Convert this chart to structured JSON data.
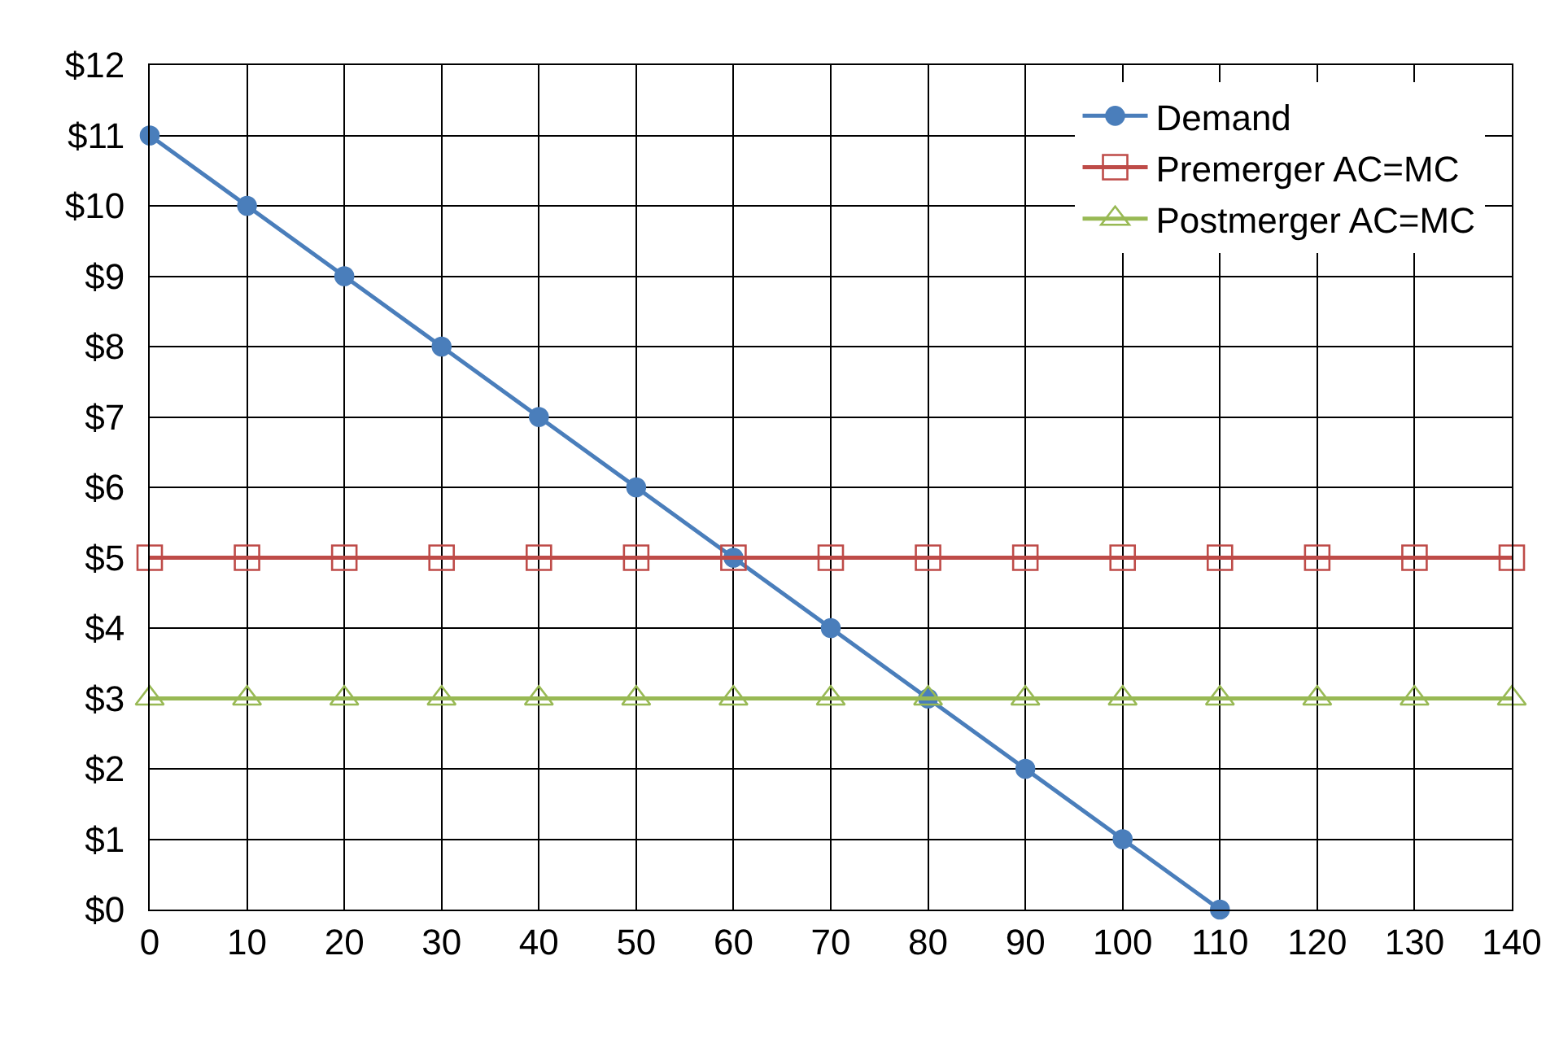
{
  "chart_data": {
    "type": "line",
    "xlim": [
      0,
      140
    ],
    "xticks": [
      0,
      10,
      20,
      30,
      40,
      50,
      60,
      70,
      80,
      90,
      100,
      110,
      120,
      130,
      140
    ],
    "ylim": [
      0,
      12
    ],
    "yticks": [
      {
        "value": 0,
        "label": "$0"
      },
      {
        "value": 1,
        "label": "$1"
      },
      {
        "value": 2,
        "label": "$2"
      },
      {
        "value": 3,
        "label": "$3"
      },
      {
        "value": 4,
        "label": "$4"
      },
      {
        "value": 5,
        "label": "$5"
      },
      {
        "value": 6,
        "label": "$6"
      },
      {
        "value": 7,
        "label": "$7"
      },
      {
        "value": 8,
        "label": "$8"
      },
      {
        "value": 9,
        "label": "$9"
      },
      {
        "value": 10,
        "label": "$10"
      },
      {
        "value": 11,
        "label": "$11"
      },
      {
        "value": 12,
        "label": "$12"
      }
    ],
    "grid": true,
    "legend": "top right",
    "line_style": "solid",
    "series": [
      {
        "name": "Demand",
        "color": "#4a7ebb",
        "marker": "circle",
        "x": [
          0,
          10,
          20,
          30,
          40,
          50,
          60,
          70,
          80,
          90,
          100,
          110
        ],
        "values": [
          11,
          10,
          9,
          8,
          7,
          6,
          5,
          4,
          3,
          2,
          1,
          0
        ]
      },
      {
        "name": "Premerger AC=MC",
        "color": "#be4b48",
        "marker": "square",
        "x": [
          0,
          10,
          20,
          30,
          40,
          50,
          60,
          70,
          80,
          90,
          100,
          110,
          120,
          130,
          140
        ],
        "values": [
          5,
          5,
          5,
          5,
          5,
          5,
          5,
          5,
          5,
          5,
          5,
          5,
          5,
          5,
          5
        ]
      },
      {
        "name": "Postmerger AC=MC",
        "color": "#98b954",
        "marker": "triangle",
        "x": [
          0,
          10,
          20,
          30,
          40,
          50,
          60,
          70,
          80,
          90,
          100,
          110,
          120,
          130,
          140
        ],
        "values": [
          3,
          3,
          3,
          3,
          3,
          3,
          3,
          3,
          3,
          3,
          3,
          3,
          3,
          3,
          3
        ]
      }
    ]
  }
}
